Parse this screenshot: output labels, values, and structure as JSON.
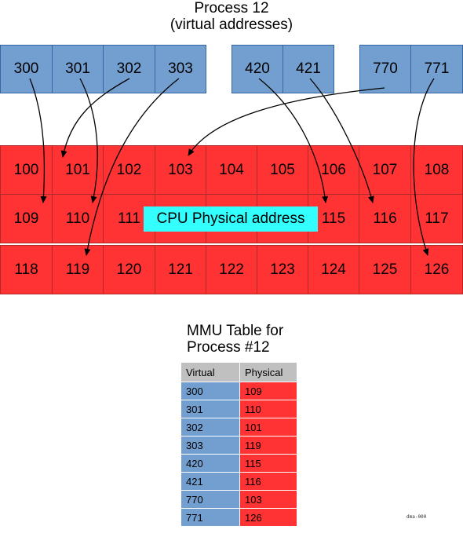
{
  "title": {
    "line1": "Process 12",
    "line2": "(virtual addresses)"
  },
  "virtual_cells": [
    "300",
    "301",
    "302",
    "303",
    "420",
    "421",
    "770",
    "771"
  ],
  "physical_rows": [
    [
      "100",
      "101",
      "102",
      "103",
      "104",
      "105",
      "106",
      "107",
      "108"
    ],
    [
      "109",
      "110",
      "111",
      "",
      "",
      "",
      "115",
      "116",
      "117"
    ],
    [
      "118",
      "119",
      "120",
      "121",
      "122",
      "123",
      "124",
      "125",
      "126"
    ]
  ],
  "cpu_label": "CPU Physical address",
  "mmu": {
    "title_line1": "MMU Table for",
    "title_line2": "Process #12",
    "headers": [
      "Virtual",
      "Physical"
    ],
    "rows": [
      [
        "300",
        "109"
      ],
      [
        "301",
        "110"
      ],
      [
        "302",
        "101"
      ],
      [
        "303",
        "119"
      ],
      [
        "420",
        "115"
      ],
      [
        "421",
        "116"
      ],
      [
        "770",
        "103"
      ],
      [
        "771",
        "126"
      ]
    ]
  },
  "footnote": "dma-000",
  "colors": {
    "virtual": "#729fcf",
    "physical": "#ff3333",
    "label": "#33ffff",
    "header": "#c0c0c0"
  }
}
